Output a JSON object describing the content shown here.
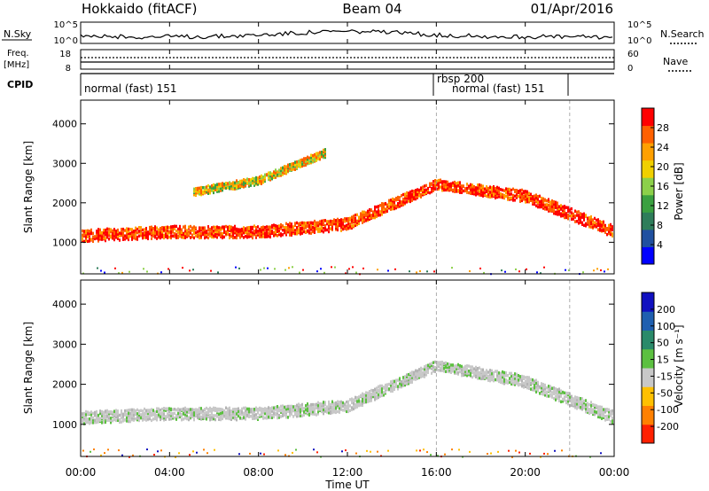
{
  "header": {
    "station": "Hokkaido (fitACF)",
    "beam": "Beam 04",
    "date": "01/Apr/2016"
  },
  "top_panel": {
    "nsky_label": "N.Sky",
    "nsky_ticks": [
      "10^5",
      "10^0"
    ],
    "nsearch_label": "N.Search",
    "nsearch_ticks": [
      "10^5",
      "10^0"
    ],
    "freq_label": "Freq.",
    "freq_unit": "[MHz]",
    "freq_ticks": [
      "18",
      "8"
    ],
    "nave_label": "Nave",
    "nave_ticks": [
      "60",
      "0"
    ],
    "cpid_label": "CPID",
    "cpid_segments": [
      "normal (fast) 151",
      "rbsp 200",
      "normal (fast) 151"
    ]
  },
  "power_colorbar": {
    "label": "Power [dB]",
    "ticks": [
      "28",
      "24",
      "20",
      "16",
      "12",
      "8",
      "4"
    ],
    "colors": [
      "#0000ff",
      "#2050a0",
      "#2e7d5a",
      "#3aa040",
      "#8cd04a",
      "#f0d000",
      "#ffa000",
      "#ff6000",
      "#ff0000"
    ]
  },
  "velocity_colorbar": {
    "label": "Velocity [m s⁻¹]",
    "ticks": [
      "200",
      "100",
      "50",
      "15",
      "-15",
      "-50",
      "-100",
      "-200"
    ],
    "colors": [
      "#1010c0",
      "#1f5fb0",
      "#2a8a6a",
      "#5cc040",
      "#c8c8c8",
      "#ffc000",
      "#ff8000",
      "#ff2000"
    ]
  },
  "chart_data": [
    {
      "type": "heatmap",
      "panel": "power",
      "xlabel": "Time UT",
      "ylabel": "Slant Range [km]",
      "xlim": [
        0,
        24
      ],
      "ylim": [
        200,
        4600
      ],
      "x_ticks": [
        "00:00",
        "04:00",
        "08:00",
        "12:00",
        "16:00",
        "20:00",
        "00:00"
      ],
      "y_ticks": [
        "1000",
        "2000",
        "3000",
        "4000"
      ],
      "bands": [
        {
          "x": [
            0,
            4,
            8,
            12,
            16,
            20,
            24
          ],
          "center": [
            1200,
            1300,
            1300,
            1500,
            2500,
            2200,
            1300
          ],
          "width": [
            300,
            300,
            300,
            300,
            250,
            300,
            300
          ],
          "level": "strong"
        },
        {
          "x": [
            5,
            8,
            11
          ],
          "center": [
            2300,
            2600,
            3300
          ],
          "width": [
            200,
            200,
            200
          ],
          "level": "medium"
        }
      ]
    },
    {
      "type": "heatmap",
      "panel": "velocity",
      "xlabel": "Time UT",
      "ylabel": "Slant Range [km]",
      "xlim": [
        0,
        24
      ],
      "ylim": [
        200,
        4600
      ],
      "x_ticks": [
        "00:00",
        "04:00",
        "08:00",
        "12:00",
        "16:00",
        "20:00",
        "00:00"
      ],
      "y_ticks": [
        "1000",
        "2000",
        "3000",
        "4000"
      ],
      "bands": [
        {
          "x": [
            0,
            4,
            8,
            12,
            16,
            20,
            24
          ],
          "center": [
            1200,
            1300,
            1300,
            1500,
            2500,
            2100,
            1200
          ],
          "width": [
            300,
            300,
            300,
            300,
            250,
            300,
            300
          ],
          "level": "ground"
        }
      ]
    }
  ]
}
